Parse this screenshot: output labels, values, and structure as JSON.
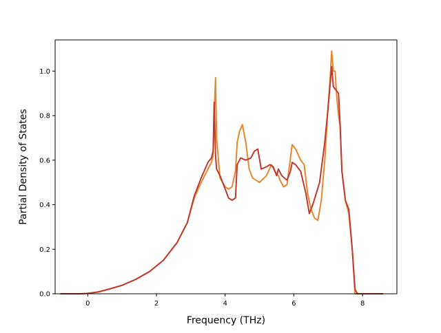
{
  "chart_data": {
    "type": "line",
    "title": "",
    "xlabel": "Frequency (THz)",
    "ylabel": "Partial Density of States",
    "xlim": [
      -0.95,
      9.0
    ],
    "ylim": [
      0.0,
      1.14
    ],
    "x_ticks": [
      0,
      2,
      4,
      6,
      8
    ],
    "y_ticks": [
      0.0,
      0.2,
      0.4,
      0.6,
      0.8,
      1.0
    ],
    "x_tick_labels": [
      "0",
      "2",
      "4",
      "6",
      "8"
    ],
    "y_tick_labels": [
      "0.0",
      "0.2",
      "0.4",
      "0.6",
      "0.8",
      "1.0"
    ],
    "grid": false,
    "legend": "none",
    "series": [
      {
        "color": "#e6862e",
        "x": [
          -0.8,
          -0.2,
          0.0,
          0.3,
          0.6,
          1.0,
          1.4,
          1.8,
          2.2,
          2.6,
          2.9,
          3.1,
          3.3,
          3.5,
          3.6,
          3.65,
          3.68,
          3.72,
          3.75,
          3.85,
          4.0,
          4.1,
          4.2,
          4.3,
          4.35,
          4.42,
          4.5,
          4.6,
          4.7,
          4.8,
          5.0,
          5.2,
          5.35,
          5.45,
          5.55,
          5.6,
          5.7,
          5.8,
          5.95,
          6.05,
          6.2,
          6.3,
          6.4,
          6.5,
          6.6,
          6.7,
          6.8,
          6.9,
          7.0,
          7.05,
          7.1,
          7.15,
          7.2,
          7.25,
          7.3,
          7.35,
          7.4,
          7.5,
          7.6,
          7.7,
          7.78,
          7.85,
          8.6
        ],
        "y": [
          0.0,
          0.0,
          0.002,
          0.008,
          0.02,
          0.038,
          0.065,
          0.1,
          0.15,
          0.23,
          0.32,
          0.43,
          0.5,
          0.56,
          0.59,
          0.62,
          0.8,
          0.97,
          0.7,
          0.52,
          0.48,
          0.47,
          0.48,
          0.55,
          0.68,
          0.73,
          0.76,
          0.68,
          0.56,
          0.52,
          0.5,
          0.53,
          0.58,
          0.55,
          0.53,
          0.51,
          0.48,
          0.49,
          0.67,
          0.65,
          0.6,
          0.58,
          0.45,
          0.38,
          0.34,
          0.33,
          0.42,
          0.6,
          0.85,
          0.95,
          1.09,
          1.0,
          1.0,
          0.88,
          0.8,
          0.75,
          0.55,
          0.42,
          0.36,
          0.2,
          0.0,
          0.0,
          0.0
        ]
      },
      {
        "color": "#c0392b",
        "x": [
          -0.8,
          -0.2,
          0.0,
          0.3,
          0.6,
          1.0,
          1.4,
          1.8,
          2.2,
          2.6,
          2.9,
          3.1,
          3.3,
          3.5,
          3.6,
          3.65,
          3.68,
          3.72,
          3.75,
          3.85,
          4.0,
          4.1,
          4.2,
          4.3,
          4.35,
          4.45,
          4.6,
          4.75,
          4.85,
          4.95,
          5.05,
          5.2,
          5.3,
          5.4,
          5.5,
          5.55,
          5.65,
          5.8,
          5.9,
          5.95,
          6.05,
          6.2,
          6.35,
          6.45,
          6.55,
          6.65,
          6.75,
          6.9,
          7.0,
          7.05,
          7.1,
          7.15,
          7.2,
          7.3,
          7.35,
          7.4,
          7.5,
          7.6,
          7.7,
          7.78,
          7.85,
          8.6
        ],
        "y": [
          0.0,
          0.0,
          0.002,
          0.008,
          0.02,
          0.038,
          0.065,
          0.1,
          0.15,
          0.23,
          0.32,
          0.44,
          0.52,
          0.59,
          0.61,
          0.64,
          0.86,
          0.62,
          0.56,
          0.53,
          0.47,
          0.43,
          0.42,
          0.43,
          0.58,
          0.61,
          0.6,
          0.61,
          0.64,
          0.65,
          0.56,
          0.57,
          0.58,
          0.57,
          0.53,
          0.56,
          0.53,
          0.51,
          0.55,
          0.59,
          0.58,
          0.55,
          0.45,
          0.36,
          0.4,
          0.45,
          0.5,
          0.68,
          0.84,
          0.93,
          1.02,
          0.93,
          0.92,
          0.9,
          0.75,
          0.55,
          0.42,
          0.38,
          0.2,
          0.02,
          0.0,
          0.0
        ]
      }
    ]
  }
}
